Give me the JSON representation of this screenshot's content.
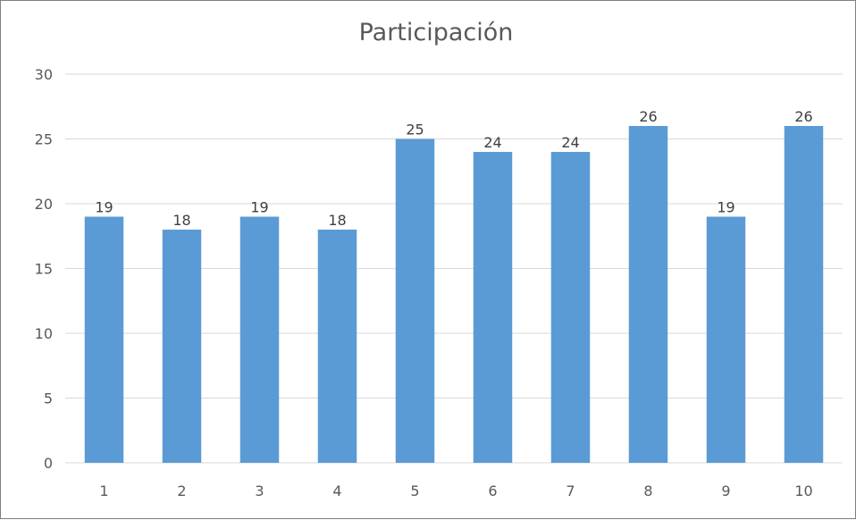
{
  "chart_data": {
    "type": "bar",
    "title": "Participación",
    "categories": [
      "1",
      "2",
      "3",
      "4",
      "5",
      "6",
      "7",
      "8",
      "9",
      "10"
    ],
    "values": [
      19,
      18,
      19,
      18,
      25,
      24,
      24,
      26,
      19,
      26
    ],
    "ylim": [
      0,
      30
    ],
    "yticks": [
      0,
      5,
      10,
      15,
      20,
      25,
      30
    ],
    "grid": true,
    "legend": "none",
    "data_labels": true,
    "bar_color": "#5b9bd5",
    "grid_color": "#d9d9d9",
    "text_color": "#595959"
  }
}
